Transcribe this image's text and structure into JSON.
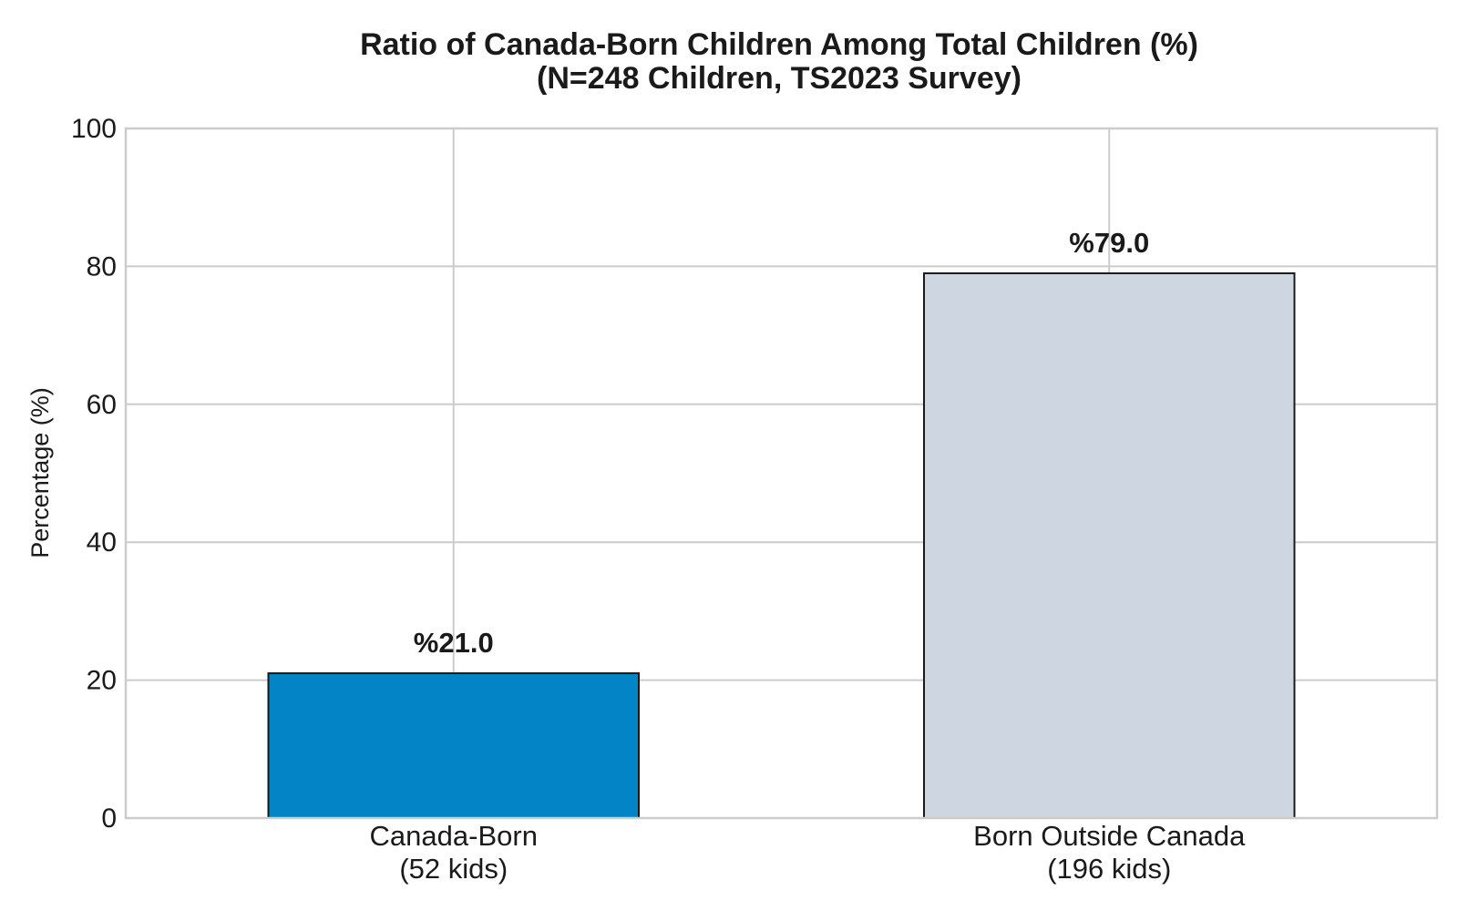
{
  "chart_data": {
    "type": "bar",
    "title": "Ratio of Canada-Born Children Among Total Children (%)",
    "subtitle": "(N=248 Children, TS2023 Survey)",
    "xlabel": "",
    "ylabel": "Percentage (%)",
    "ylim": [
      0,
      100
    ],
    "yticks": [
      "0",
      "20",
      "40",
      "60",
      "80",
      "100"
    ],
    "grid": true,
    "categories": [
      {
        "line1": "Canada-Born",
        "line2": "(52 kids)"
      },
      {
        "line1": "Born Outside Canada",
        "line2": "(196 kids)"
      }
    ],
    "values": [
      21.0,
      79.0
    ],
    "value_labels": [
      "%21.0",
      "%79.0"
    ],
    "colors": [
      "#0384c6",
      "#cdd6e1"
    ]
  }
}
